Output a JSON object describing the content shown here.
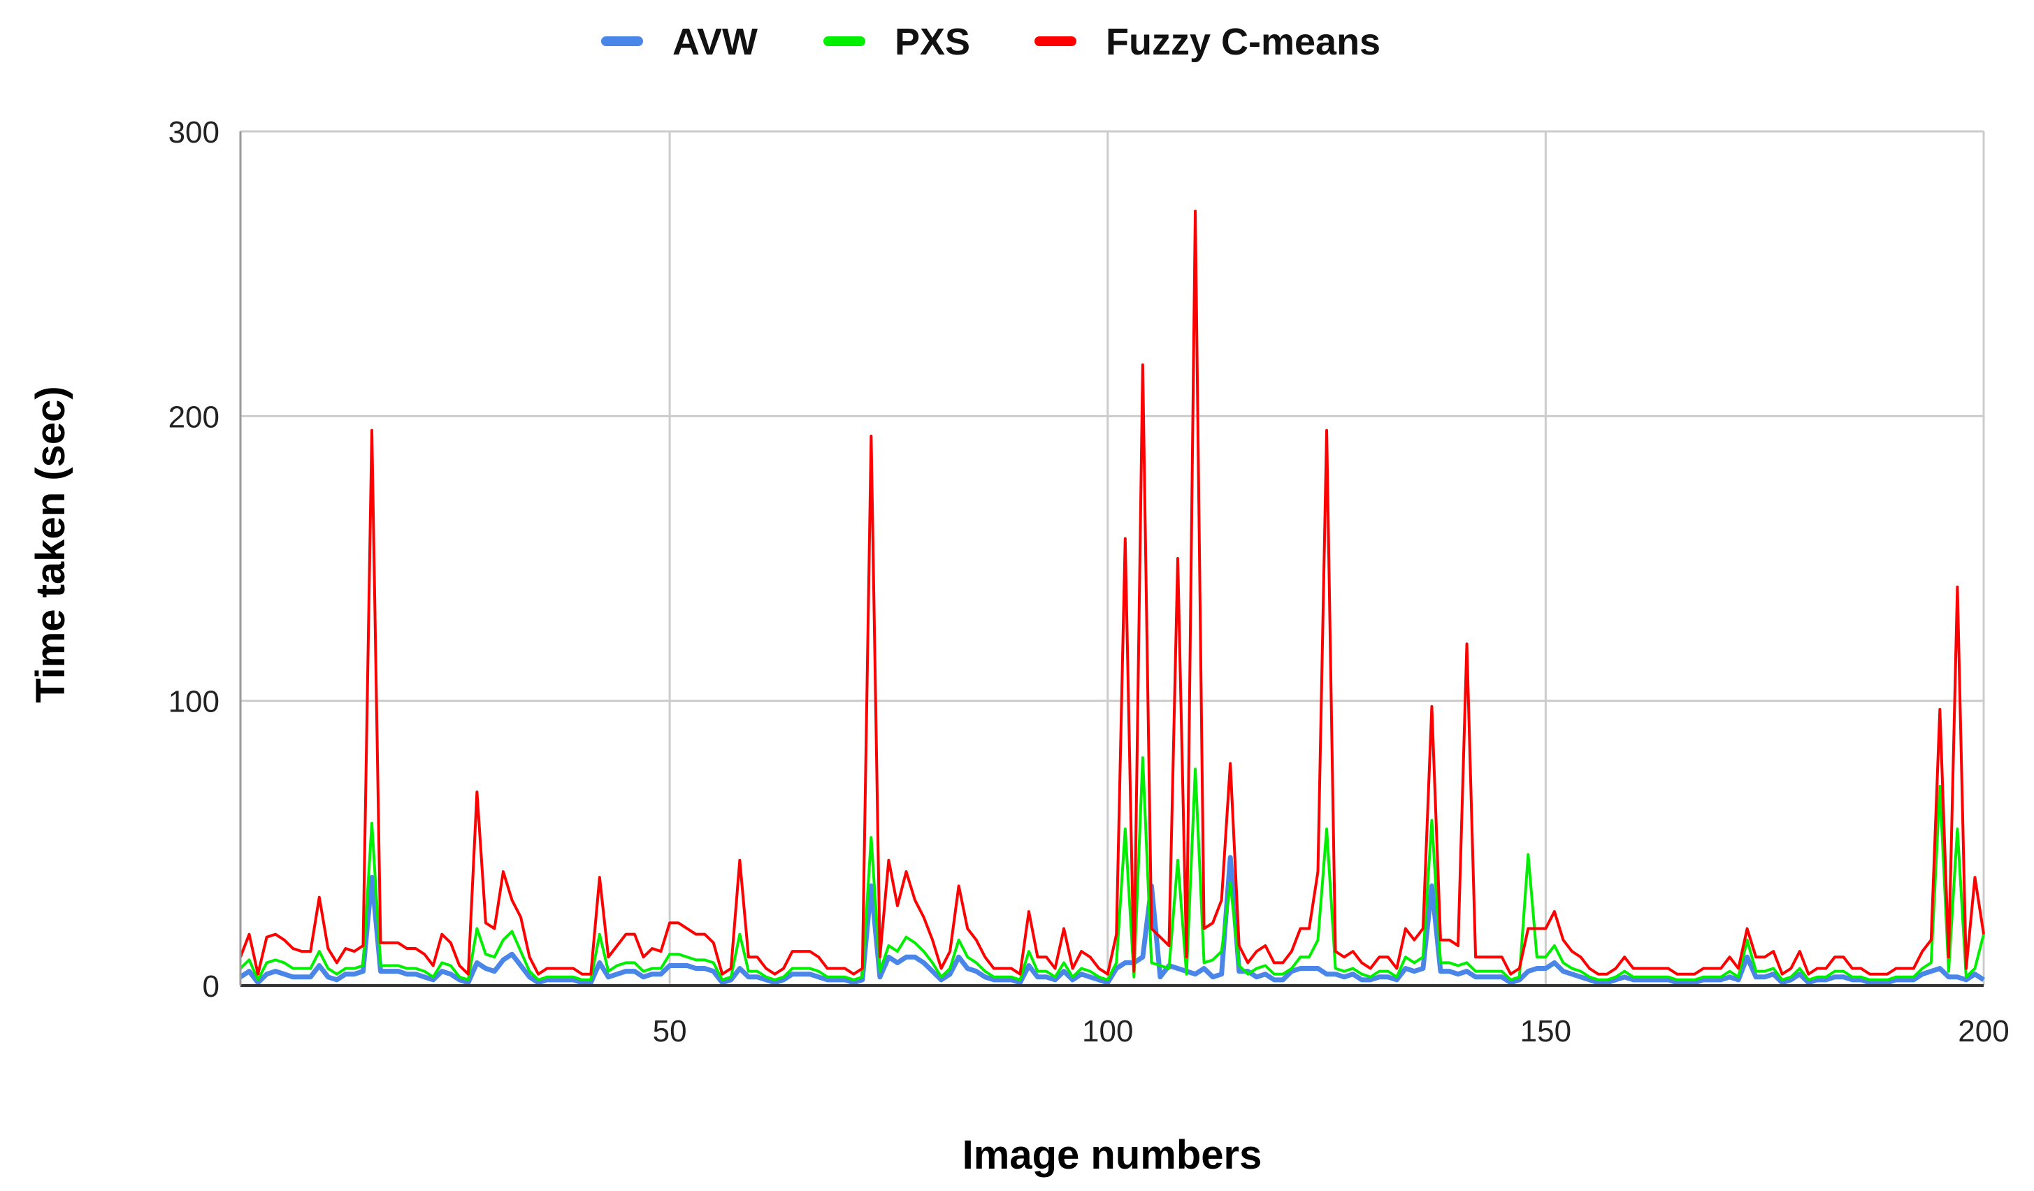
{
  "chart_data": {
    "type": "line",
    "title": "",
    "xlabel": "Image numbers",
    "ylabel": "Time taken (sec)",
    "xlim": [
      1,
      200
    ],
    "ylim": [
      0,
      300
    ],
    "x_ticks": [
      50,
      100,
      150,
      200
    ],
    "y_ticks": [
      0,
      100,
      200,
      300
    ],
    "grid": true,
    "legend_position": "top-center",
    "series": [
      {
        "name": "AVW",
        "color": "#4a86e8",
        "values": [
          3,
          5,
          1,
          4,
          5,
          4,
          3,
          3,
          3,
          7,
          3,
          2,
          4,
          4,
          5,
          38,
          5,
          5,
          5,
          4,
          4,
          3,
          2,
          5,
          4,
          2,
          1,
          8,
          6,
          5,
          9,
          11,
          7,
          3,
          1,
          2,
          2,
          2,
          2,
          1,
          1,
          8,
          3,
          4,
          5,
          5,
          3,
          4,
          4,
          7,
          7,
          7,
          6,
          6,
          5,
          1,
          2,
          6,
          3,
          3,
          2,
          1,
          2,
          4,
          4,
          4,
          3,
          2,
          2,
          2,
          1,
          2,
          35,
          3,
          10,
          8,
          10,
          10,
          8,
          5,
          2,
          4,
          10,
          6,
          5,
          3,
          2,
          2,
          2,
          1,
          7,
          3,
          3,
          2,
          5,
          2,
          4,
          3,
          2,
          1,
          6,
          8,
          8,
          10,
          35,
          3,
          7,
          6,
          5,
          4,
          6,
          3,
          4,
          45,
          5,
          5,
          3,
          4,
          2,
          2,
          5,
          6,
          6,
          6,
          4,
          4,
          3,
          4,
          2,
          2,
          3,
          3,
          2,
          6,
          5,
          6,
          35,
          5,
          5,
          4,
          5,
          3,
          3,
          3,
          3,
          1,
          2,
          5,
          6,
          6,
          8,
          5,
          4,
          3,
          2,
          1,
          1,
          2,
          3,
          2,
          2,
          2,
          2,
          2,
          1,
          1,
          1,
          2,
          2,
          2,
          3,
          2,
          10,
          3,
          3,
          4,
          1,
          2,
          4,
          1,
          2,
          2,
          3,
          3,
          2,
          2,
          1,
          1,
          1,
          2,
          2,
          2,
          4,
          5,
          6,
          3,
          3,
          2,
          4,
          2
        ],
        "note": ""
      }
    ]
  },
  "legend": {
    "items": [
      {
        "label": "AVW",
        "color": "#4a86e8"
      },
      {
        "label": "PXS",
        "color": "#00ee00"
      },
      {
        "label": "Fuzzy C-means",
        "color": "#ff0000"
      }
    ]
  }
}
